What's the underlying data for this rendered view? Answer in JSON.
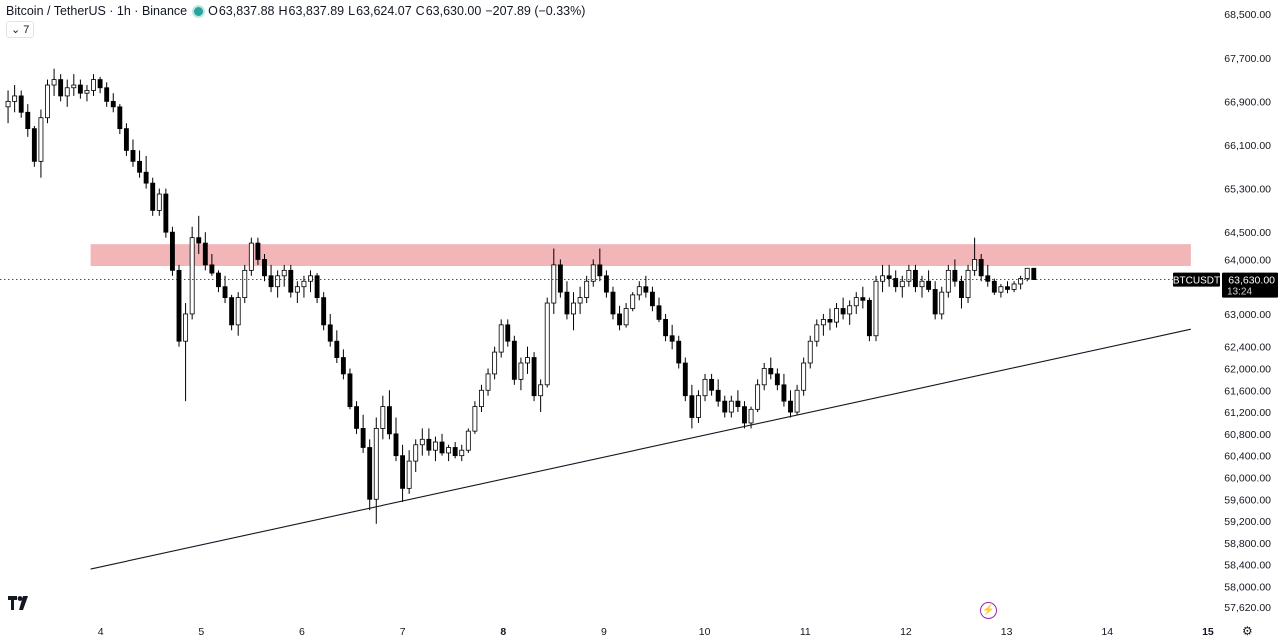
{
  "header": {
    "symbol": "Bitcoin / TetherUS · 1h · Binance",
    "open_label": "O",
    "open": "63,837.88",
    "high_label": "H",
    "high": "63,837.89",
    "low_label": "L",
    "low": "63,624.07",
    "close_label": "C",
    "close": "63,630.00",
    "change": "−207.89 (−0.33%)"
  },
  "indicator_toggle": {
    "count": "7"
  },
  "price_tag": {
    "ticker": "BTCUSDT",
    "price": "63,630.00",
    "countdown": "13:24"
  },
  "colors": {
    "bull": "#ffffff",
    "bear": "#000000",
    "wick": "#000000",
    "zone": "#f0a8ab",
    "text": "#131722"
  },
  "icons": [
    "tradingview-logo-icon",
    "lightning-icon",
    "gear-icon",
    "chevron-down-icon"
  ],
  "chart_data": {
    "type": "candlestick",
    "ylim": [
      57440,
      68760
    ],
    "xlim": [
      3.0,
      15.1
    ],
    "y_ticks": [
      {
        "value": 68500,
        "label": "68,500.00"
      },
      {
        "value": 67700,
        "label": "67,700.00"
      },
      {
        "value": 66900,
        "label": "66,900.00"
      },
      {
        "value": 66100,
        "label": "66,100.00"
      },
      {
        "value": 65300,
        "label": "65,300.00"
      },
      {
        "value": 64500,
        "label": "64,500.00"
      },
      {
        "value": 64000,
        "label": "64,000.00"
      },
      {
        "value": 63000,
        "label": "63,000.00"
      },
      {
        "value": 62400,
        "label": "62,400.00"
      },
      {
        "value": 62000,
        "label": "62,000.00"
      },
      {
        "value": 61600,
        "label": "61,600.00"
      },
      {
        "value": 61200,
        "label": "61,200.00"
      },
      {
        "value": 60800,
        "label": "60,800.00"
      },
      {
        "value": 60400,
        "label": "60,400.00"
      },
      {
        "value": 60000,
        "label": "60,000.00"
      },
      {
        "value": 59600,
        "label": "59,600.00"
      },
      {
        "value": 59200,
        "label": "59,200.00"
      },
      {
        "value": 58800,
        "label": "58,800.00"
      },
      {
        "value": 58400,
        "label": "58,400.00"
      },
      {
        "value": 58000,
        "label": "58,000.00"
      },
      {
        "value": 57620,
        "label": "57,620.00"
      }
    ],
    "x_ticks": [
      {
        "value": 4,
        "label": "4",
        "bold": false
      },
      {
        "value": 5,
        "label": "5",
        "bold": false
      },
      {
        "value": 6,
        "label": "6",
        "bold": false
      },
      {
        "value": 7,
        "label": "7",
        "bold": false
      },
      {
        "value": 8,
        "label": "8",
        "bold": true
      },
      {
        "value": 9,
        "label": "9",
        "bold": false
      },
      {
        "value": 10,
        "label": "10",
        "bold": false
      },
      {
        "value": 11,
        "label": "11",
        "bold": false
      },
      {
        "value": 12,
        "label": "12",
        "bold": false
      },
      {
        "value": 13,
        "label": "13",
        "bold": false
      },
      {
        "value": 14,
        "label": "14",
        "bold": false
      },
      {
        "value": 15,
        "label": "15",
        "bold": true
      }
    ],
    "last_price": 63630,
    "resistance_zone": {
      "x0": 3.9,
      "x1": 14.83,
      "y_low": 63880,
      "y_high": 64280
    },
    "trendline": {
      "x0": 3.9,
      "y0": 58320,
      "x1": 14.83,
      "y1": 62720
    },
    "candles": [
      [
        66800,
        67100,
        66500,
        66900
      ],
      [
        66900,
        67200,
        66700,
        67000
      ],
      [
        67000,
        67100,
        66600,
        66700
      ],
      [
        66700,
        66850,
        66250,
        66400
      ],
      [
        66400,
        66450,
        65700,
        65800
      ],
      [
        65800,
        66750,
        65500,
        66600
      ],
      [
        66600,
        67300,
        66500,
        67200
      ],
      [
        67200,
        67500,
        67000,
        67300
      ],
      [
        67300,
        67400,
        66900,
        67000
      ],
      [
        67000,
        67300,
        66800,
        67150
      ],
      [
        67150,
        67400,
        67000,
        67200
      ],
      [
        67200,
        67300,
        66950,
        67050
      ],
      [
        67050,
        67200,
        66900,
        67100
      ],
      [
        67100,
        67400,
        67000,
        67300
      ],
      [
        67300,
        67350,
        67050,
        67150
      ],
      [
        67150,
        67250,
        66800,
        66900
      ],
      [
        66900,
        67050,
        66700,
        66800
      ],
      [
        66800,
        66850,
        66300,
        66400
      ],
      [
        66400,
        66500,
        65900,
        66000
      ],
      [
        66000,
        66200,
        65700,
        65800
      ],
      [
        65800,
        66000,
        65500,
        65600
      ],
      [
        65600,
        65900,
        65300,
        65400
      ],
      [
        65400,
        65500,
        64800,
        64900
      ],
      [
        64900,
        65300,
        64800,
        65200
      ],
      [
        65200,
        65300,
        64400,
        64500
      ],
      [
        64500,
        64600,
        63700,
        63800
      ],
      [
        63800,
        63900,
        62400,
        62500
      ],
      [
        62500,
        63200,
        61400,
        63000
      ],
      [
        63000,
        64600,
        62900,
        64400
      ],
      [
        64400,
        64800,
        64100,
        64300
      ],
      [
        64300,
        64500,
        63800,
        63900
      ],
      [
        63900,
        64100,
        63700,
        63750
      ],
      [
        63750,
        63800,
        63400,
        63500
      ],
      [
        63500,
        63700,
        63200,
        63300
      ],
      [
        63300,
        63350,
        62700,
        62800
      ],
      [
        62800,
        63400,
        62600,
        63300
      ],
      [
        63300,
        63900,
        63200,
        63800
      ],
      [
        63800,
        64400,
        63700,
        64300
      ],
      [
        64300,
        64400,
        63900,
        64000
      ],
      [
        64000,
        64100,
        63600,
        63700
      ],
      [
        63700,
        63900,
        63400,
        63500
      ],
      [
        63500,
        63800,
        63300,
        63700
      ],
      [
        63700,
        63900,
        63500,
        63800
      ],
      [
        63800,
        63900,
        63300,
        63400
      ],
      [
        63400,
        63600,
        63200,
        63500
      ],
      [
        63500,
        63700,
        63300,
        63600
      ],
      [
        63600,
        63800,
        63400,
        63700
      ],
      [
        63700,
        63750,
        63200,
        63300
      ],
      [
        63300,
        63400,
        62700,
        62800
      ],
      [
        62800,
        63000,
        62400,
        62500
      ],
      [
        62500,
        62700,
        62100,
        62200
      ],
      [
        62200,
        62350,
        61800,
        61900
      ],
      [
        61900,
        62000,
        61250,
        61300
      ],
      [
        61300,
        61400,
        60800,
        60900
      ],
      [
        60900,
        61150,
        60450,
        60550
      ],
      [
        60550,
        60700,
        59400,
        59600
      ],
      [
        59600,
        61100,
        59150,
        60900
      ],
      [
        60900,
        61500,
        60700,
        61300
      ],
      [
        61300,
        61600,
        60700,
        60800
      ],
      [
        60800,
        61100,
        60300,
        60400
      ],
      [
        60400,
        60600,
        59550,
        59800
      ],
      [
        59800,
        60500,
        59700,
        60300
      ],
      [
        60300,
        60700,
        60100,
        60600
      ],
      [
        60600,
        60900,
        60400,
        60700
      ],
      [
        60700,
        60900,
        60400,
        60500
      ],
      [
        60500,
        60750,
        60300,
        60650
      ],
      [
        60650,
        60800,
        60400,
        60450
      ],
      [
        60450,
        60600,
        60300,
        60550
      ],
      [
        60550,
        60650,
        60350,
        60400
      ],
      [
        60400,
        60600,
        60300,
        60500
      ],
      [
        60500,
        60900,
        60450,
        60850
      ],
      [
        60850,
        61400,
        60800,
        61300
      ],
      [
        61300,
        61700,
        61200,
        61600
      ],
      [
        61600,
        62000,
        61500,
        61900
      ],
      [
        61900,
        62400,
        61800,
        62300
      ],
      [
        62300,
        62900,
        62200,
        62800
      ],
      [
        62800,
        62900,
        62400,
        62500
      ],
      [
        62500,
        62600,
        61700,
        61800
      ],
      [
        61800,
        62200,
        61600,
        62100
      ],
      [
        62100,
        62400,
        61900,
        62200
      ],
      [
        62200,
        62300,
        61400,
        61500
      ],
      [
        61500,
        61800,
        61200,
        61700
      ],
      [
        61700,
        63300,
        61650,
        63200
      ],
      [
        63200,
        64200,
        63000,
        63900
      ],
      [
        63900,
        64000,
        63300,
        63400
      ],
      [
        63400,
        63600,
        62900,
        63000
      ],
      [
        63000,
        63400,
        62700,
        63200
      ],
      [
        63200,
        63500,
        63000,
        63300
      ],
      [
        63300,
        63700,
        63200,
        63600
      ],
      [
        63600,
        64000,
        63500,
        63900
      ],
      [
        63900,
        64200,
        63600,
        63700
      ],
      [
        63700,
        63800,
        63300,
        63400
      ],
      [
        63400,
        63500,
        62900,
        63000
      ],
      [
        63000,
        63150,
        62700,
        62800
      ],
      [
        62800,
        63200,
        62750,
        63100
      ],
      [
        63100,
        63400,
        63050,
        63350
      ],
      [
        63350,
        63600,
        63250,
        63500
      ],
      [
        63500,
        63700,
        63300,
        63400
      ],
      [
        63400,
        63500,
        63050,
        63150
      ],
      [
        63150,
        63300,
        62850,
        62900
      ],
      [
        62900,
        63000,
        62500,
        62600
      ],
      [
        62600,
        62800,
        62350,
        62500
      ],
      [
        62500,
        62600,
        62000,
        62100
      ],
      [
        62100,
        62200,
        61400,
        61500
      ],
      [
        61500,
        61700,
        60900,
        61100
      ],
      [
        61100,
        61600,
        61000,
        61500
      ],
      [
        61500,
        61900,
        61400,
        61800
      ],
      [
        61800,
        61900,
        61500,
        61600
      ],
      [
        61600,
        61800,
        61300,
        61400
      ],
      [
        61400,
        61500,
        61100,
        61200
      ],
      [
        61200,
        61500,
        61100,
        61400
      ],
      [
        61400,
        61600,
        61200,
        61300
      ],
      [
        61300,
        61400,
        60900,
        61000
      ],
      [
        61000,
        61300,
        60900,
        61250
      ],
      [
        61250,
        61800,
        61200,
        61700
      ],
      [
        61700,
        62100,
        61600,
        62000
      ],
      [
        62000,
        62200,
        61800,
        61900
      ],
      [
        61900,
        62000,
        61600,
        61700
      ],
      [
        61700,
        61900,
        61300,
        61400
      ],
      [
        61400,
        61600,
        61100,
        61200
      ],
      [
        61200,
        61700,
        61150,
        61600
      ],
      [
        61600,
        62200,
        61500,
        62100
      ],
      [
        62100,
        62600,
        62000,
        62500
      ],
      [
        62500,
        62900,
        62400,
        62800
      ],
      [
        62800,
        63000,
        62600,
        62900
      ],
      [
        62900,
        63100,
        62700,
        62850
      ],
      [
        62850,
        63200,
        62750,
        63100
      ],
      [
        63100,
        63300,
        62900,
        63000
      ],
      [
        63000,
        63250,
        62800,
        63150
      ],
      [
        63150,
        63400,
        63000,
        63300
      ],
      [
        63300,
        63500,
        63100,
        63250
      ],
      [
        63250,
        63300,
        62500,
        62600
      ],
      [
        62600,
        63700,
        62500,
        63600
      ],
      [
        63600,
        63900,
        63400,
        63700
      ],
      [
        63700,
        63900,
        63500,
        63650
      ],
      [
        63650,
        63800,
        63400,
        63500
      ],
      [
        63500,
        63700,
        63300,
        63600
      ],
      [
        63600,
        63900,
        63500,
        63800
      ],
      [
        63800,
        63900,
        63400,
        63500
      ],
      [
        63500,
        63700,
        63300,
        63600
      ],
      [
        63600,
        63800,
        63400,
        63450
      ],
      [
        63450,
        63600,
        62900,
        63000
      ],
      [
        63000,
        63500,
        62900,
        63400
      ],
      [
        63400,
        63900,
        63300,
        63800
      ],
      [
        63800,
        64000,
        63500,
        63600
      ],
      [
        63600,
        63700,
        63100,
        63300
      ],
      [
        63300,
        63900,
        63200,
        63800
      ],
      [
        63800,
        64400,
        63700,
        64000
      ],
      [
        64000,
        64100,
        63600,
        63700
      ],
      [
        63700,
        63900,
        63500,
        63600
      ],
      [
        63600,
        63650,
        63350,
        63400
      ],
      [
        63400,
        63550,
        63300,
        63500
      ],
      [
        63500,
        63600,
        63380,
        63450
      ],
      [
        63450,
        63600,
        63400,
        63550
      ],
      [
        63550,
        63700,
        63450,
        63650
      ],
      [
        63650,
        63838,
        63600,
        63838
      ],
      [
        63838,
        63838,
        63624,
        63630
      ]
    ]
  }
}
